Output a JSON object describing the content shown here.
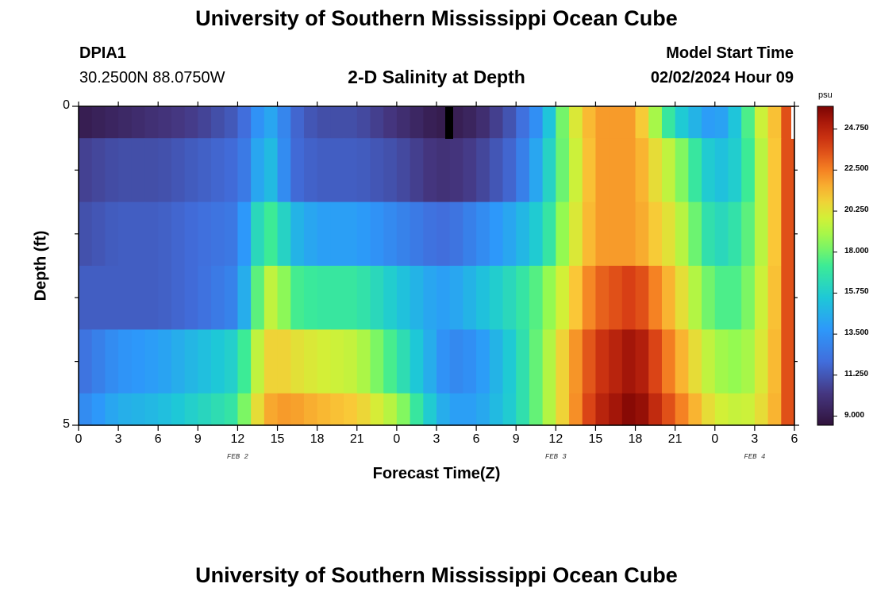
{
  "header": {
    "title_top": "University of Southern Mississippi Ocean Cube",
    "station_id": "DPIA1",
    "station_coords": "30.2500N  88.0750W",
    "plot_title": "2-D Salinity at Depth",
    "model_start_label": "Model Start Time",
    "model_start_value": "02/02/2024 Hour 09",
    "title_bottom": "University of Southern Mississippi Ocean Cube"
  },
  "chart_data": {
    "type": "heatmap",
    "title": "2-D Salinity at Depth",
    "xlabel": "Forecast Time(Z)",
    "ylabel": "Depth (ft)",
    "units": "psu",
    "x_tick_labels": [
      "0",
      "3",
      "6",
      "9",
      "12",
      "15",
      "18",
      "21",
      "0",
      "3",
      "6",
      "9",
      "12",
      "15",
      "18",
      "21",
      "0",
      "3",
      "6"
    ],
    "x_range_hours": [
      0,
      54
    ],
    "date_labels": [
      {
        "text": "FEB 2",
        "hour": 12
      },
      {
        "text": "FEB 3",
        "hour": 36
      },
      {
        "text": "FEB 4",
        "hour": 51
      }
    ],
    "y_tick_labels": [
      "0",
      "5"
    ],
    "y_range_ft": [
      0,
      5
    ],
    "depth_bands_ft": [
      [
        0,
        0.5
      ],
      [
        0.5,
        1.5
      ],
      [
        1.5,
        2.5
      ],
      [
        2.5,
        3.5
      ],
      [
        3.5,
        4.5
      ],
      [
        4.5,
        5
      ]
    ],
    "colorbar": {
      "min": 8.5,
      "max": 26.0,
      "tick_labels": [
        "24.750",
        "22.500",
        "20.250",
        "18.000",
        "15.750",
        "13.500",
        "11.250",
        "9.000"
      ],
      "tick_values": [
        24.75,
        22.5,
        20.25,
        18.0,
        15.75,
        13.5,
        11.25,
        9.0
      ]
    },
    "salinity_keyframes": {
      "hours": [
        0,
        3,
        6,
        9,
        12,
        13,
        14,
        15,
        16,
        18,
        21,
        24,
        27,
        28,
        30,
        33,
        35,
        37,
        39,
        42,
        45,
        48,
        50,
        51,
        53,
        54
      ],
      "rows": [
        [
          9,
          9.5,
          10,
          10.5,
          11.5,
          12.5,
          14.5,
          14,
          12,
          11,
          11,
          10,
          9,
          9,
          9.5,
          11.5,
          14,
          19.5,
          22,
          22,
          16,
          13.5,
          16,
          19,
          22,
          25
        ],
        [
          10.5,
          11,
          11,
          11.5,
          12,
          13,
          15.5,
          14.5,
          12,
          11.5,
          11.5,
          11,
          10,
          10,
          10.5,
          12,
          15,
          19,
          22,
          22,
          19,
          15,
          16,
          18.5,
          22,
          25
        ],
        [
          11,
          11.5,
          11.5,
          12,
          12.5,
          15,
          17.5,
          17,
          15,
          14,
          14,
          13,
          12,
          12,
          13,
          14.5,
          16,
          19.5,
          22,
          22,
          20,
          16,
          17,
          18.5,
          22,
          25
        ],
        [
          11.5,
          11.5,
          11.5,
          12,
          13,
          16,
          19.5,
          19.5,
          17.5,
          17,
          17,
          15.5,
          14,
          14,
          15,
          16.5,
          18,
          20.5,
          23,
          24,
          21,
          17.5,
          17.5,
          19,
          22,
          25
        ],
        [
          12,
          13.5,
          14,
          15,
          16,
          18.5,
          20.5,
          21,
          20.5,
          20,
          19.5,
          17,
          14,
          13,
          13.5,
          16,
          18.5,
          21.5,
          24,
          25.5,
          22,
          19,
          18.5,
          19.5,
          22,
          25
        ],
        [
          13,
          14.5,
          15,
          16,
          17,
          19.5,
          21.5,
          22,
          22,
          21.5,
          21,
          19,
          15,
          14,
          14,
          16,
          18.5,
          21.5,
          24.5,
          26,
          23,
          20,
          19.5,
          20,
          22,
          25
        ]
      ]
    }
  }
}
